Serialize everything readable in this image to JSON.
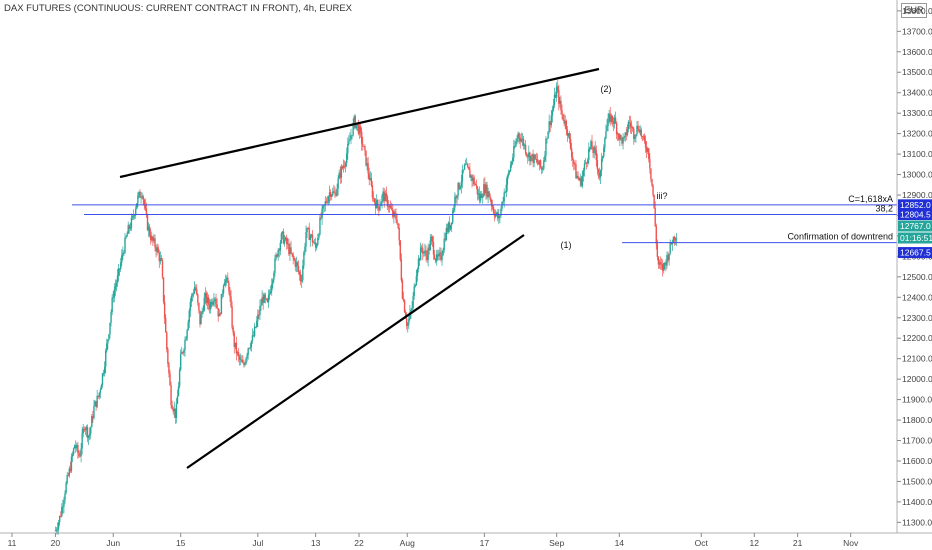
{
  "header": {
    "title": "DAX FUTURES (CONTINUOUS: CURRENT CONTRACT IN FRONT), 4h, EUREX",
    "currency": "EUR"
  },
  "colors": {
    "up": "#26a69a",
    "down": "#ef5350",
    "level_line": "#3f51e8",
    "trend_line": "#000000",
    "tag_blue": "#2030d6",
    "tag_teal": "#26a69a"
  },
  "chart_data": {
    "type": "candlestick",
    "ylim": [
      13250,
      13820
    ],
    "y_ticks": [
      13800,
      13700,
      13600,
      13500,
      13400,
      13300,
      13200,
      13100,
      13000,
      12900,
      12800,
      12700,
      12600,
      12500,
      12400,
      12300,
      12200,
      12100,
      12000,
      11900,
      11800,
      11700,
      11600,
      11500,
      11400,
      11300
    ],
    "y_tick_labels": [
      "13800.0",
      "13700.0",
      "13600.0",
      "13500.0",
      "13400.0",
      "13300.0",
      "13200.0",
      "13100.0",
      "13000.0",
      "12900.0",
      "12800.0",
      "12700.0",
      "12600.0",
      "12500.0",
      "12400.0",
      "12300.0",
      "12200.0",
      "12100.0",
      "12000.0",
      "11900.0",
      "11800.0",
      "11700.0",
      "11600.0",
      "11500.0",
      "11400.0",
      "11300.0"
    ],
    "x_ticks": [
      {
        "label": "11",
        "day": 0
      },
      {
        "label": "20",
        "day": 9
      },
      {
        "label": "Jun",
        "day": 21
      },
      {
        "label": "15",
        "day": 35
      },
      {
        "label": "Jul",
        "day": 51
      },
      {
        "label": "13",
        "day": 63
      },
      {
        "label": "22",
        "day": 72
      },
      {
        "label": "Aug",
        "day": 82
      },
      {
        "label": "17",
        "day": 98
      },
      {
        "label": "Sep",
        "day": 113
      },
      {
        "label": "14",
        "day": 126
      },
      {
        "label": "Oct",
        "day": 143
      },
      {
        "label": "12",
        "day": 154
      },
      {
        "label": "21",
        "day": 163
      },
      {
        "label": "Nov",
        "day": 174
      }
    ],
    "price_path": [
      [
        9,
        11260
      ],
      [
        10,
        11330
      ],
      [
        11,
        11460
      ],
      [
        12,
        11560
      ],
      [
        13,
        11680
      ],
      [
        14,
        11620
      ],
      [
        15,
        11780
      ],
      [
        16,
        11720
      ],
      [
        17,
        11860
      ],
      [
        18,
        11920
      ],
      [
        19,
        12050
      ],
      [
        20,
        12220
      ],
      [
        21,
        12420
      ],
      [
        22,
        12500
      ],
      [
        23,
        12620
      ],
      [
        24,
        12720
      ],
      [
        25,
        12780
      ],
      [
        26,
        12880
      ],
      [
        27,
        12920
      ],
      [
        28,
        12760
      ],
      [
        29,
        12680
      ],
      [
        30,
        12640
      ],
      [
        31,
        12560
      ],
      [
        32,
        12180
      ],
      [
        33,
        11900
      ],
      [
        34,
        11820
      ],
      [
        35,
        12100
      ],
      [
        36,
        12200
      ],
      [
        37,
        12380
      ],
      [
        38,
        12460
      ],
      [
        39,
        12280
      ],
      [
        40,
        12400
      ],
      [
        41,
        12360
      ],
      [
        42,
        12420
      ],
      [
        43,
        12300
      ],
      [
        44,
        12500
      ],
      [
        45,
        12450
      ],
      [
        46,
        12180
      ],
      [
        47,
        12100
      ],
      [
        48,
        12060
      ],
      [
        49,
        12160
      ],
      [
        50,
        12200
      ],
      [
        51,
        12300
      ],
      [
        52,
        12400
      ],
      [
        53,
        12360
      ],
      [
        54,
        12500
      ],
      [
        55,
        12620
      ],
      [
        56,
        12700
      ],
      [
        57,
        12660
      ],
      [
        58,
        12600
      ],
      [
        59,
        12560
      ],
      [
        60,
        12480
      ],
      [
        61,
        12720
      ],
      [
        62,
        12700
      ],
      [
        63,
        12640
      ],
      [
        64,
        12780
      ],
      [
        65,
        12860
      ],
      [
        66,
        12920
      ],
      [
        67,
        12900
      ],
      [
        68,
        13000
      ],
      [
        69,
        13060
      ],
      [
        70,
        13160
      ],
      [
        71,
        13260
      ],
      [
        72,
        13220
      ],
      [
        73,
        13120
      ],
      [
        74,
        13000
      ],
      [
        75,
        12880
      ],
      [
        76,
        12840
      ],
      [
        77,
        12900
      ],
      [
        78,
        12860
      ],
      [
        79,
        12800
      ],
      [
        80,
        12780
      ],
      [
        81,
        12420
      ],
      [
        82,
        12260
      ],
      [
        83,
        12350
      ],
      [
        84,
        12550
      ],
      [
        85,
        12640
      ],
      [
        86,
        12600
      ],
      [
        87,
        12680
      ],
      [
        88,
        12580
      ],
      [
        89,
        12600
      ],
      [
        90,
        12720
      ],
      [
        91,
        12760
      ],
      [
        92,
        12900
      ],
      [
        93,
        12960
      ],
      [
        94,
        13040
      ],
      [
        95,
        13000
      ],
      [
        96,
        12960
      ],
      [
        97,
        12880
      ],
      [
        98,
        12940
      ],
      [
        99,
        12900
      ],
      [
        100,
        12820
      ],
      [
        101,
        12780
      ],
      [
        102,
        12900
      ],
      [
        103,
        13000
      ],
      [
        104,
        13100
      ],
      [
        105,
        13200
      ],
      [
        106,
        13160
      ],
      [
        107,
        13100
      ],
      [
        108,
        13080
      ],
      [
        109,
        13060
      ],
      [
        110,
        13020
      ],
      [
        111,
        13200
      ],
      [
        112,
        13300
      ],
      [
        113,
        13420
      ],
      [
        114,
        13300
      ],
      [
        115,
        13240
      ],
      [
        116,
        13120
      ],
      [
        117,
        13000
      ],
      [
        118,
        12960
      ],
      [
        119,
        13060
      ],
      [
        120,
        13140
      ],
      [
        121,
        13100
      ],
      [
        122,
        12980
      ],
      [
        123,
        13200
      ],
      [
        124,
        13280
      ],
      [
        125,
        13260
      ],
      [
        126,
        13180
      ],
      [
        127,
        13160
      ],
      [
        128,
        13260
      ],
      [
        129,
        13200
      ],
      [
        130,
        13240
      ],
      [
        131,
        13160
      ],
      [
        132,
        13120
      ],
      [
        133,
        12900
      ],
      [
        134,
        12560
      ],
      [
        135,
        12540
      ],
      [
        136,
        12600
      ],
      [
        137,
        12680
      ],
      [
        138,
        12720
      ]
    ],
    "levels": [
      {
        "label": "C=1,618xA",
        "value": 12852.0,
        "tag": "12852.0"
      },
      {
        "label": "38,2",
        "value": 12804.5,
        "tag": "12804.5"
      },
      {
        "label": "Confirmation of downtrend",
        "value": 12667.5,
        "tag": "12667.5"
      }
    ],
    "last_price": {
      "value": "12767.0",
      "countdown": "01:16:51"
    },
    "trend_lines": [
      {
        "from": [
          21,
          12980
        ],
        "to": [
          135,
          13510
        ]
      },
      {
        "from": [
          21,
          11550
        ],
        "to": [
          116,
          12670
        ]
      }
    ],
    "annotations": [
      {
        "text": "(2)",
        "day": 120,
        "price": 13420
      },
      {
        "text": "(1)",
        "day": 111,
        "price": 12630
      },
      {
        "text": "iii?",
        "day": 132,
        "price": 12880
      }
    ]
  }
}
